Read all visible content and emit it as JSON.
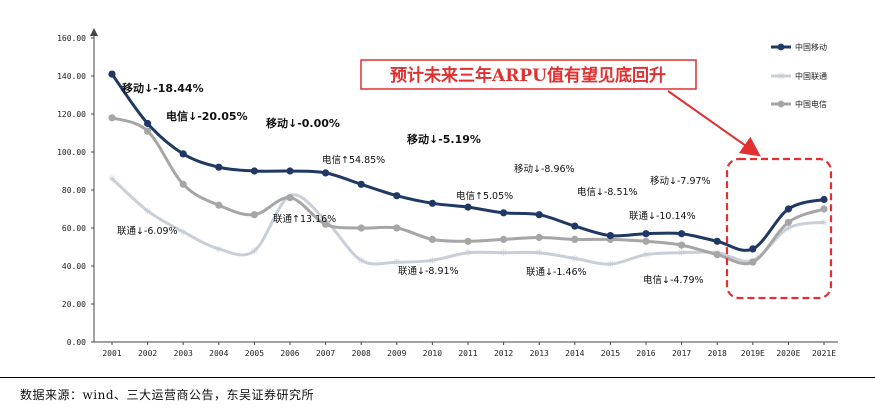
{
  "chart_data": {
    "type": "line",
    "categories": [
      "2001",
      "2002",
      "2003",
      "2004",
      "2005",
      "2006",
      "2007",
      "2008",
      "2009",
      "2010",
      "2011",
      "2012",
      "2013",
      "2014",
      "2015",
      "2016",
      "2017",
      "2018",
      "2019E",
      "2020E",
      "2021E"
    ],
    "yticks": [
      "0.00",
      "20.00",
      "40.00",
      "60.00",
      "80.00",
      "100.00",
      "120.00",
      "140.00",
      "160.00"
    ],
    "ylim": [
      0,
      160
    ],
    "series": [
      {
        "name": "中国移动",
        "color": "#1f3864",
        "marker": "circle",
        "values": [
          141,
          115,
          99,
          92,
          90,
          90,
          89,
          83,
          77,
          73,
          71,
          68,
          67,
          61,
          56,
          57,
          57,
          53,
          49,
          70,
          75
        ]
      },
      {
        "name": "中国联通",
        "color": "#c9cfd9",
        "marker": "star",
        "values": [
          86,
          69,
          58,
          49,
          48,
          77,
          64,
          43,
          42,
          43,
          47,
          47,
          47,
          44,
          41,
          46,
          47,
          47,
          43,
          60,
          63
        ]
      },
      {
        "name": "中国电信",
        "color": "#a6a6a6",
        "marker": "circle",
        "values": [
          118,
          111,
          83,
          72,
          67,
          76,
          62,
          60,
          60,
          54,
          53,
          54,
          55,
          54,
          54,
          53,
          51,
          46,
          42,
          63,
          70
        ]
      }
    ],
    "annotations": [
      {
        "id": "a1",
        "text": "移动↓-18.44%",
        "bold": true
      },
      {
        "id": "a2",
        "text": "电信↓-20.05%",
        "bold": true
      },
      {
        "id": "a3",
        "text": "移动↓-0.00%",
        "bold": true
      },
      {
        "id": "a4",
        "text": "移动↓-5.19%",
        "bold": true
      },
      {
        "id": "a5",
        "text": "电信↑54.85%",
        "bold": false
      },
      {
        "id": "a6",
        "text": "联通↑13.16%",
        "bold": false
      },
      {
        "id": "a7",
        "text": "联通↓-6.09%",
        "bold": false
      },
      {
        "id": "a8",
        "text": "电信↑5.05%",
        "bold": false
      },
      {
        "id": "a9",
        "text": "联通↓-8.91%",
        "bold": false
      },
      {
        "id": "a10",
        "text": "移动↓-8.96%",
        "bold": false
      },
      {
        "id": "a11",
        "text": "电信↓-8.51%",
        "bold": false
      },
      {
        "id": "a12",
        "text": "联通↓-1.46%",
        "bold": false
      },
      {
        "id": "a13",
        "text": "移动↓-7.97%",
        "bold": false
      },
      {
        "id": "a14",
        "text": "联通↓-10.14%",
        "bold": false
      },
      {
        "id": "a15",
        "text": "电信↓-4.79%",
        "bold": false
      }
    ],
    "callout": "预计未来三年ARPU值有望见底回升",
    "highlight_range": [
      "2019E",
      "2021E"
    ],
    "legend_placement": "right"
  },
  "colors": {
    "callout": "#e03030",
    "axis": "#444444"
  },
  "footer": {
    "source": "数据来源：wind、三大运营商公告，东吴证券研究所"
  }
}
